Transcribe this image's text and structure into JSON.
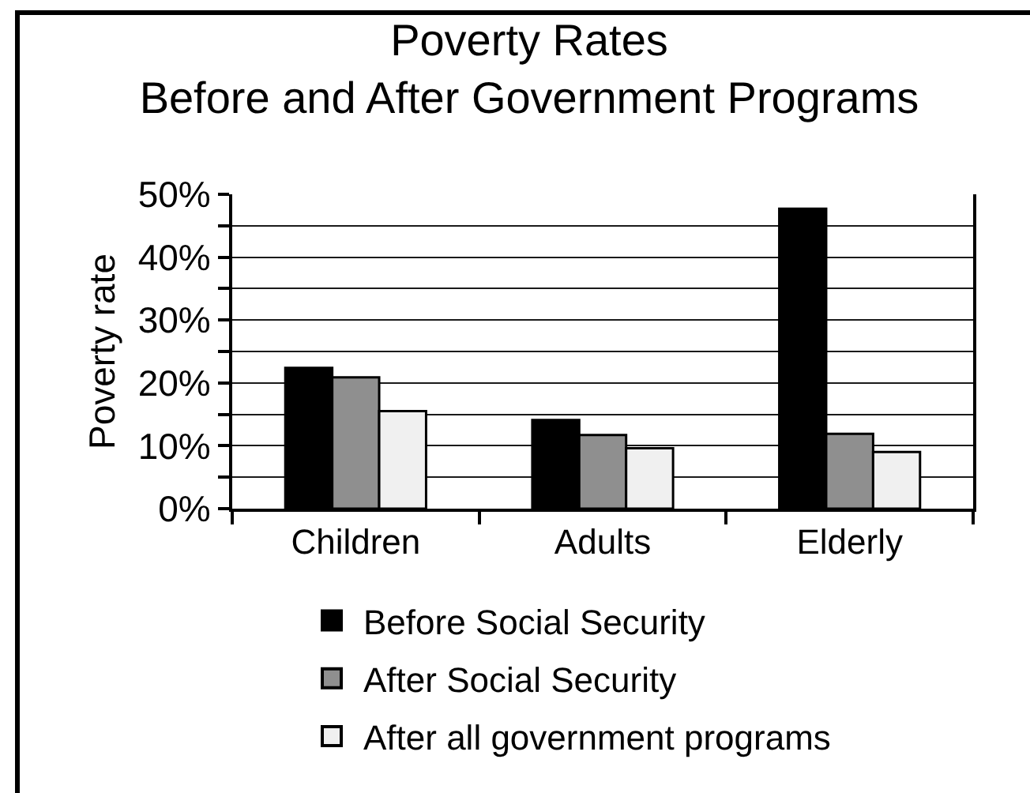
{
  "chart_data": {
    "type": "bar",
    "title": "Poverty Rates\nBefore and After Government Programs",
    "ylabel": "Poverty rate",
    "categories": [
      "Children",
      "Adults",
      "Elderly"
    ],
    "series": [
      {
        "name": "Before Social Security",
        "color": "#000000",
        "values": [
          22.4,
          14.1,
          47.7
        ]
      },
      {
        "name": "After Social Security",
        "color": "#8f8f8f",
        "values": [
          20.9,
          11.7,
          11.9
        ]
      },
      {
        "name": "After all government programs",
        "color": "#f0f0f0",
        "values": [
          15.5,
          9.6,
          9.0
        ]
      }
    ],
    "ylim": [
      0,
      50
    ],
    "yticks": [
      {
        "value": 0,
        "label": "0%"
      },
      {
        "value": 5,
        "label": null
      },
      {
        "value": 10,
        "label": "10%"
      },
      {
        "value": 15,
        "label": null
      },
      {
        "value": 20,
        "label": "20%"
      },
      {
        "value": 25,
        "label": null
      },
      {
        "value": 30,
        "label": "30%"
      },
      {
        "value": 35,
        "label": null
      },
      {
        "value": 40,
        "label": "40%"
      },
      {
        "value": 45,
        "label": null
      },
      {
        "value": 50,
        "label": "50%"
      }
    ],
    "grid": "y",
    "legend": "bottom"
  }
}
